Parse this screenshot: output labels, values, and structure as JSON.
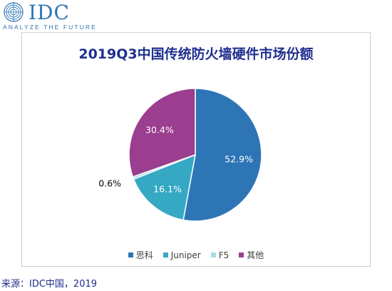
{
  "logo": {
    "brand": "IDC",
    "tagline": "ANALYZE THE FUTURE"
  },
  "chart_data": {
    "type": "pie",
    "title": "2019Q3中国传统防火墙硬件市场份额",
    "slices": [
      {
        "label": "思科",
        "value": 52.9,
        "display": "52.9%",
        "color": "#2e75b6",
        "label_color": "#ffffff"
      },
      {
        "label": "Juniper",
        "value": 16.1,
        "display": "16.1%",
        "color": "#35a9c4",
        "label_color": "#ffffff"
      },
      {
        "label": "F5",
        "value": 0.6,
        "display": "0.6%",
        "color": "#a3dde8",
        "label_color": "#000000"
      },
      {
        "label": "其他",
        "value": 30.4,
        "display": "30.4%",
        "color": "#9b3e8f",
        "label_color": "#ffffff"
      }
    ],
    "legend_position": "bottom"
  },
  "source": "来源：IDC中国，2019"
}
